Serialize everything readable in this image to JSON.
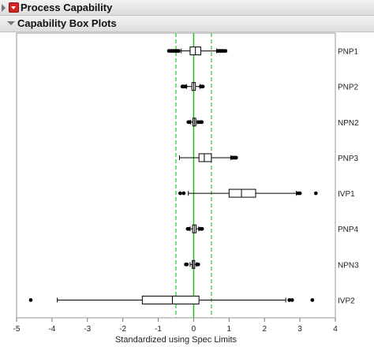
{
  "header": {
    "title": "Process Capability",
    "subtitle": "Capability Box Plots"
  },
  "colors": {
    "spec_line": "#33cc33",
    "center_line": "#22bb22",
    "box": "#000000"
  },
  "chart_data": {
    "type": "boxplot",
    "title": "",
    "xlabel": "Standardized using Spec Limits",
    "ylabel": "",
    "xlim": [
      -5,
      4
    ],
    "x_ticks": [
      -5,
      -4,
      -3,
      -2,
      -1,
      0,
      1,
      2,
      3,
      4
    ],
    "reference_lines": {
      "solid": [
        0
      ],
      "dashed": [
        -0.5,
        0.5
      ]
    },
    "categories": [
      "PNP1",
      "PNP2",
      "NPN2",
      "PNP3",
      "IVP1",
      "PNP4",
      "NPN3",
      "IVP2"
    ],
    "series": [
      {
        "label": "PNP1",
        "whisker_low": -0.35,
        "q1": -0.1,
        "median": 0.05,
        "q3": 0.2,
        "whisker_high": 0.65,
        "outliers": [
          -0.7,
          -0.66,
          -0.62,
          -0.58,
          -0.54,
          -0.5,
          -0.46,
          -0.42,
          0.68,
          0.72,
          0.76,
          0.8,
          0.85,
          0.9
        ]
      },
      {
        "label": "PNP2",
        "whisker_low": -0.2,
        "q1": -0.05,
        "median": 0.0,
        "q3": 0.05,
        "whisker_high": 0.18,
        "outliers": [
          -0.32,
          -0.29,
          -0.26,
          -0.23,
          0.2,
          0.23,
          0.26
        ]
      },
      {
        "label": "NPN2",
        "whisker_low": -0.08,
        "q1": -0.02,
        "median": 0.02,
        "q3": 0.06,
        "whisker_high": 0.1,
        "outliers": [
          -0.15,
          -0.12,
          0.15,
          0.19,
          0.23
        ]
      },
      {
        "label": "PNP3",
        "whisker_low": -0.4,
        "q1": 0.15,
        "median": 0.3,
        "q3": 0.5,
        "whisker_high": 1.05,
        "outliers": [
          1.08,
          1.11,
          1.14,
          1.17,
          1.2
        ]
      },
      {
        "label": "IVP1",
        "whisker_low": -0.15,
        "q1": 1.0,
        "median": 1.35,
        "q3": 1.75,
        "whisker_high": 2.9,
        "outliers": [
          -0.38,
          -0.28,
          2.95,
          3.0,
          3.45
        ]
      },
      {
        "label": "PNP4",
        "whisker_low": -0.1,
        "q1": -0.03,
        "median": 0.02,
        "q3": 0.07,
        "whisker_high": 0.14,
        "outliers": [
          -0.17,
          -0.14,
          0.18,
          0.21,
          0.24
        ]
      },
      {
        "label": "NPN3",
        "whisker_low": -0.1,
        "q1": -0.04,
        "median": -0.01,
        "q3": 0.03,
        "whisker_high": 0.08,
        "outliers": [
          -0.22,
          -0.19,
          0.1,
          0.13
        ]
      },
      {
        "label": "IVP2",
        "whisker_low": -3.85,
        "q1": -1.45,
        "median": -0.6,
        "q3": 0.15,
        "whisker_high": 2.6,
        "outliers": [
          -4.6,
          2.7,
          2.78,
          3.35
        ]
      }
    ]
  }
}
